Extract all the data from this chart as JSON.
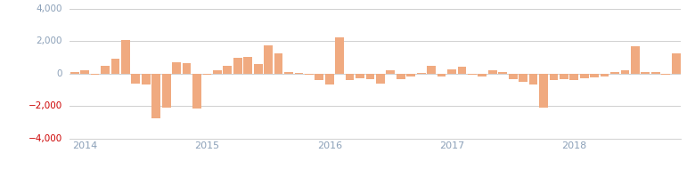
{
  "bar_color": "#f0aa80",
  "neg_tick_color": "#cc0000",
  "pos_tick_color": "#8ba0b8",
  "background_color": "#ffffff",
  "ylim": [
    -4000,
    4000
  ],
  "yticks": [
    -4000,
    -2000,
    0,
    2000,
    4000
  ],
  "grid_color": "#d0d0d0",
  "values": [
    100,
    200,
    -100,
    500,
    900,
    2050,
    -600,
    -700,
    -2750,
    -2100,
    700,
    650,
    -2150,
    -100,
    200,
    500,
    950,
    1000,
    600,
    1750,
    1250,
    100,
    50,
    -100,
    -400,
    -700,
    2200,
    -400,
    -300,
    -350,
    -600,
    200,
    -350,
    -200,
    50,
    500,
    -200,
    250,
    400,
    -100,
    -200,
    200,
    100,
    -350,
    -500,
    -700,
    -2100,
    -400,
    -350,
    -400,
    -300,
    -250,
    -200,
    100,
    200,
    1650,
    100,
    100,
    -100,
    1250
  ],
  "xtick_positions": [
    1,
    13,
    25,
    37,
    49
  ],
  "xtick_labels": [
    "2014",
    "2015",
    "2016",
    "2017",
    "2018"
  ]
}
